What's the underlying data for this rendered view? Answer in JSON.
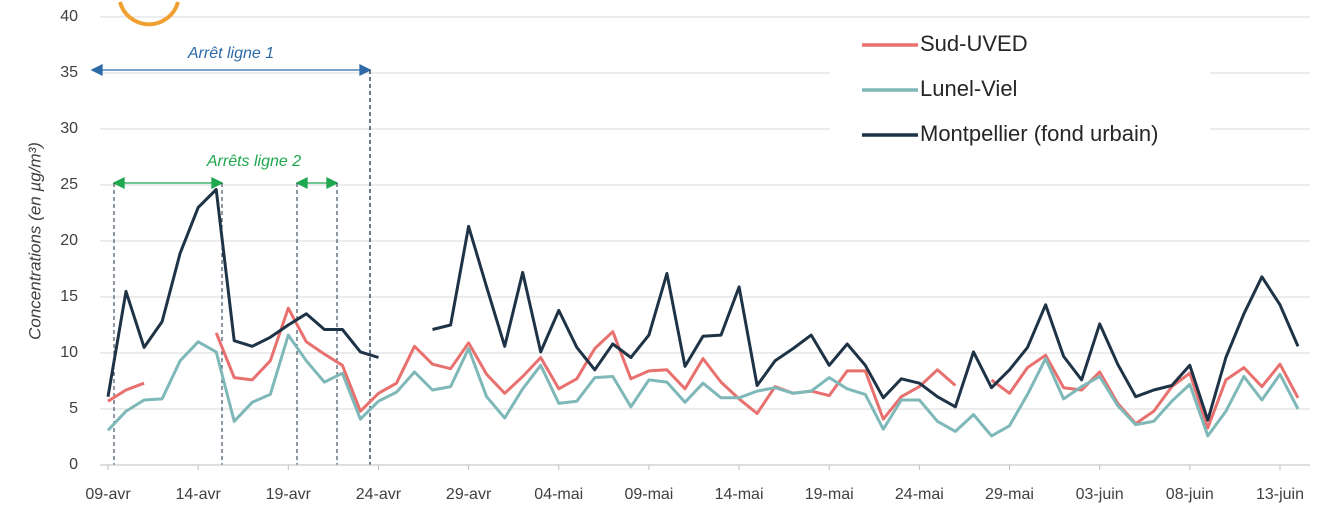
{
  "chart_data": {
    "type": "line",
    "ylabel": "Concentrations (en µg/m³)",
    "categories": [
      "09-avr",
      null,
      null,
      null,
      null,
      "14-avr",
      null,
      null,
      null,
      null,
      "19-avr",
      null,
      null,
      null,
      null,
      "24-avr",
      null,
      null,
      null,
      null,
      "29-avr",
      null,
      null,
      null,
      null,
      "04-mai",
      null,
      null,
      null,
      null,
      "09-mai",
      null,
      null,
      null,
      null,
      "14-mai",
      null,
      null,
      null,
      null,
      "19-mai",
      null,
      null,
      null,
      null,
      "24-mai",
      null,
      null,
      null,
      null,
      "29-mai",
      null,
      null,
      null,
      null,
      "03-juin",
      null,
      null,
      null,
      null,
      "08-juin",
      null,
      null,
      null,
      null,
      "13-juin",
      null
    ],
    "series": [
      {
        "name": "Sud-UVED",
        "color": "#e8706e",
        "values": [
          5.7,
          6.7,
          7.3,
          null,
          null,
          null,
          11.8,
          7.8,
          7.6,
          9.3,
          14.0,
          11.0,
          9.9,
          8.9,
          4.8,
          6.4,
          7.3,
          10.6,
          9.0,
          8.6,
          10.9,
          8.1,
          6.4,
          7.9,
          9.6,
          6.8,
          7.7,
          10.4,
          11.9,
          7.7,
          8.4,
          8.5,
          6.8,
          9.5,
          7.4,
          5.9,
          4.6,
          7.0,
          6.4,
          6.6,
          6.2,
          8.4,
          8.4,
          4.1,
          6.1,
          7.0,
          8.5,
          7.1,
          null,
          7.6,
          6.4,
          8.7,
          9.8,
          6.9,
          6.7,
          8.3,
          5.5,
          3.7,
          4.8,
          7.0,
          8.2,
          3.3,
          7.6,
          8.7,
          7.0,
          9.0,
          6.0
        ]
      },
      {
        "name": "Lunel-Viel",
        "color": "#7fb8b8",
        "values": [
          3.1,
          4.8,
          5.8,
          5.9,
          9.3,
          11.0,
          10.1,
          3.9,
          5.6,
          6.3,
          11.6,
          9.3,
          7.4,
          8.2,
          4.1,
          5.7,
          6.5,
          8.3,
          6.7,
          7.0,
          10.4,
          6.1,
          4.2,
          6.8,
          8.9,
          5.5,
          5.7,
          7.8,
          7.9,
          5.2,
          7.6,
          7.4,
          5.6,
          7.3,
          6.0,
          6.0,
          6.6,
          6.9,
          6.4,
          6.6,
          7.8,
          6.8,
          6.3,
          3.2,
          5.8,
          5.8,
          3.9,
          3.0,
          4.5,
          2.6,
          3.5,
          6.3,
          9.5,
          5.9,
          7.0,
          7.9,
          5.3,
          3.6,
          3.9,
          5.7,
          7.2,
          2.6,
          4.8,
          7.9,
          5.8,
          8.1,
          5.0
        ]
      },
      {
        "name": "Montpellier (fond urbain)",
        "color": "#1f3347",
        "values": [
          6.1,
          15.5,
          10.5,
          12.8,
          18.9,
          23.0,
          24.6,
          11.1,
          10.6,
          11.4,
          12.5,
          13.5,
          12.1,
          12.1,
          10.1,
          9.6,
          null,
          null,
          12.1,
          12.5,
          21.3,
          15.9,
          10.6,
          17.2,
          10.1,
          13.8,
          10.5,
          8.5,
          10.8,
          9.6,
          11.6,
          17.1,
          8.8,
          11.5,
          11.6,
          15.9,
          7.1,
          9.3,
          10.4,
          11.6,
          8.9,
          10.8,
          8.9,
          6.0,
          7.7,
          7.3,
          6.1,
          5.2,
          10.1,
          6.9,
          8.5,
          10.5,
          14.3,
          9.7,
          7.6,
          12.6,
          9.0,
          6.1,
          6.7,
          7.1,
          8.9,
          4.0,
          9.6,
          13.5,
          16.8,
          14.3,
          10.6
        ]
      }
    ],
    "ylim": [
      0,
      40
    ],
    "yticks": [
      0,
      5,
      10,
      15,
      20,
      25,
      30,
      35,
      40
    ],
    "grid": true,
    "legend": "upper right",
    "annotations": [
      "Arrêt ligne 1",
      "Arrêts ligne 2"
    ]
  }
}
